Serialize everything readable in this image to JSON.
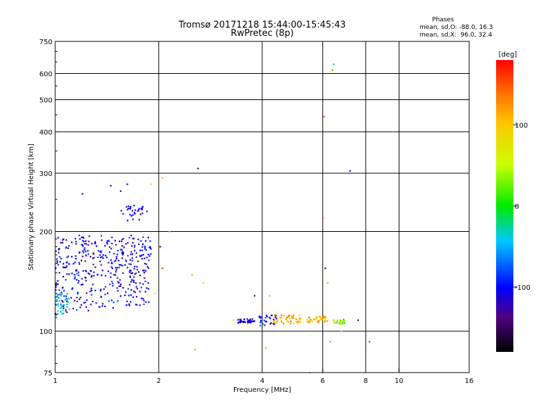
{
  "chart_data": {
    "type": "scatter",
    "title": "Tromsø 20171218 15:44:00-15:45:43",
    "subtitle": "RwPretec (8p)",
    "xlabel": "Frequency [MHz]",
    "ylabel": "Stationary phase Virtual Height [km]",
    "xscale": "log",
    "yscale": "log",
    "xlim": [
      1,
      16
    ],
    "ylim": [
      75,
      750
    ],
    "xticks": [
      "1",
      "2",
      "4",
      "6",
      "8",
      "10",
      "16"
    ],
    "xtick_values": [
      1,
      2,
      4,
      6,
      8,
      10,
      16
    ],
    "yticks": [
      "75",
      "100",
      "200",
      "300",
      "400",
      "500",
      "600",
      "750"
    ],
    "ytick_values": [
      75,
      100,
      200,
      300,
      400,
      500,
      600,
      750
    ],
    "grid_x": [
      2,
      4,
      6,
      8,
      10
    ],
    "grid_y": [
      100,
      200,
      300,
      400,
      500,
      600
    ],
    "stats": {
      "header": "Phases",
      "line_o": "mean, sd,O: -88.0, 16.3",
      "line_x": "mean, sd,X:  96.0, 32.4"
    },
    "colorbar": {
      "label": "[deg]",
      "min": -180,
      "max": 180,
      "ticks": [
        "100",
        "0",
        "-100"
      ],
      "tick_values": [
        100,
        0,
        -100
      ]
    },
    "clusters": [
      {
        "fmin": 1.0,
        "fmax": 1.9,
        "hmin": 112,
        "hmax": 195,
        "phase": -105,
        "spread": 25,
        "count": 420
      },
      {
        "fmin": 1.0,
        "fmax": 1.1,
        "hmin": 112,
        "hmax": 130,
        "phase": -40,
        "spread": 25,
        "count": 40
      },
      {
        "fmin": 1.55,
        "fmax": 1.85,
        "hmin": 215,
        "hmax": 240,
        "phase": -110,
        "spread": 15,
        "count": 30
      },
      {
        "fmin": 3.4,
        "fmax": 3.8,
        "hmin": 106,
        "hmax": 109,
        "phase": -110,
        "spread": 15,
        "count": 40
      },
      {
        "fmin": 3.9,
        "fmax": 4.4,
        "hmin": 104,
        "hmax": 112,
        "phase": -100,
        "spread": 25,
        "count": 30
      },
      {
        "fmin": 4.3,
        "fmax": 5.2,
        "hmin": 105,
        "hmax": 112,
        "phase": 110,
        "spread": 40,
        "count": 55
      },
      {
        "fmin": 5.4,
        "fmax": 6.2,
        "hmin": 106,
        "hmax": 111,
        "phase": 110,
        "spread": 35,
        "count": 40
      },
      {
        "fmin": 6.4,
        "fmax": 7.0,
        "hmin": 105,
        "hmax": 109,
        "phase": 40,
        "spread": 60,
        "count": 25
      }
    ],
    "points": [
      {
        "f": 1.2,
        "h": 260,
        "p": -110
      },
      {
        "f": 1.45,
        "h": 275,
        "p": -110
      },
      {
        "f": 1.55,
        "h": 265,
        "p": -115
      },
      {
        "f": 1.62,
        "h": 278,
        "p": -105
      },
      {
        "f": 1.7,
        "h": 228,
        "p": -110
      },
      {
        "f": 1.65,
        "h": 225,
        "p": -95
      },
      {
        "f": 1.9,
        "h": 278,
        "p": 60
      },
      {
        "f": 1.95,
        "h": 130,
        "p": 60
      },
      {
        "f": 2.05,
        "h": 290,
        "p": 110
      },
      {
        "f": 2.02,
        "h": 180,
        "p": -110
      },
      {
        "f": 2.15,
        "h": 200,
        "p": 120
      },
      {
        "f": 2.05,
        "h": 155,
        "p": 160
      },
      {
        "f": 2.6,
        "h": 310,
        "p": -130
      },
      {
        "f": 2.5,
        "h": 148,
        "p": 120
      },
      {
        "f": 2.7,
        "h": 140,
        "p": 100
      },
      {
        "f": 2.55,
        "h": 88,
        "p": 120
      },
      {
        "f": 3.3,
        "h": 108,
        "p": 60
      },
      {
        "f": 3.8,
        "h": 128,
        "p": -140
      },
      {
        "f": 4.2,
        "h": 128,
        "p": 110
      },
      {
        "f": 4.1,
        "h": 89,
        "p": 120
      },
      {
        "f": 6.45,
        "h": 640,
        "p": -30
      },
      {
        "f": 6.4,
        "h": 615,
        "p": 140
      },
      {
        "f": 6.05,
        "h": 445,
        "p": 150
      },
      {
        "f": 6.0,
        "h": 220,
        "p": 160
      },
      {
        "f": 6.1,
        "h": 155,
        "p": -150
      },
      {
        "f": 6.2,
        "h": 140,
        "p": 120
      },
      {
        "f": 7.2,
        "h": 305,
        "p": -100
      },
      {
        "f": 7.6,
        "h": 108,
        "p": -110
      },
      {
        "f": 6.8,
        "h": 100,
        "p": 80
      },
      {
        "f": 6.3,
        "h": 93,
        "p": 130
      },
      {
        "f": 8.2,
        "h": 93,
        "p": 170
      },
      {
        "f": 5.5,
        "h": 75,
        "p": 100
      }
    ]
  }
}
